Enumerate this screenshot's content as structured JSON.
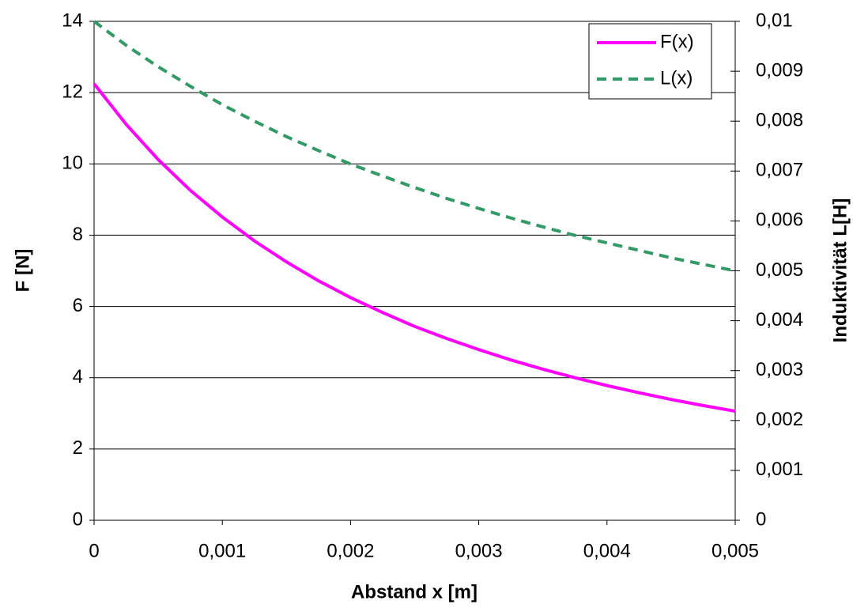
{
  "chart_data": {
    "type": "line",
    "x_label": "Abstand x [m]",
    "y_label": "F [N]",
    "y2_label": "Induktivität L[H]",
    "x": [
      0,
      0.00025,
      0.0005,
      0.00075,
      0.001,
      0.00125,
      0.0015,
      0.00175,
      0.002,
      0.00225,
      0.0025,
      0.00275,
      0.003,
      0.00325,
      0.0035,
      0.00375,
      0.004,
      0.00425,
      0.0045,
      0.00475,
      0.005
    ],
    "series": [
      {
        "name": "F(x)",
        "color": "#ff00ff",
        "dash": false,
        "axis": "y",
        "values": [
          12.25,
          11.11,
          10.12,
          9.26,
          8.51,
          7.84,
          7.25,
          6.72,
          6.25,
          5.83,
          5.44,
          5.1,
          4.79,
          4.5,
          4.24,
          4.0,
          3.78,
          3.58,
          3.39,
          3.22,
          3.06
        ]
      },
      {
        "name": "L(x)",
        "color": "#339966",
        "dash": true,
        "axis": "y2",
        "values": [
          0.01,
          0.00952,
          0.00909,
          0.0087,
          0.00833,
          0.008,
          0.00769,
          0.00741,
          0.00714,
          0.0069,
          0.00667,
          0.00645,
          0.00625,
          0.00606,
          0.00588,
          0.00571,
          0.00556,
          0.00541,
          0.00526,
          0.00513,
          0.005
        ]
      }
    ],
    "xlim": [
      0,
      0.005
    ],
    "xticks": [
      0,
      {
        "value": 0.001,
        "label": "0,001"
      },
      {
        "value": 0.002,
        "label": "0,002"
      },
      {
        "value": 0.003,
        "label": "0,003"
      },
      {
        "value": 0.004,
        "label": "0,004"
      },
      {
        "value": 0.005,
        "label": "0,005"
      }
    ],
    "ylim": [
      0,
      14
    ],
    "yticks": [
      0,
      2,
      4,
      6,
      8,
      10,
      12,
      14
    ],
    "y2lim": [
      0,
      0.01
    ],
    "y2ticks": [
      0,
      {
        "value": 0.001,
        "label": "0,001"
      },
      {
        "value": 0.002,
        "label": "0,002"
      },
      {
        "value": 0.003,
        "label": "0,003"
      },
      {
        "value": 0.004,
        "label": "0,004"
      },
      {
        "value": 0.005,
        "label": "0,005"
      },
      {
        "value": 0.006,
        "label": "0,006"
      },
      {
        "value": 0.007,
        "label": "0,007"
      },
      {
        "value": 0.008,
        "label": "0,008"
      },
      {
        "value": 0.009,
        "label": "0,009"
      },
      {
        "value": 0.01,
        "label": "0,01"
      }
    ],
    "grid": true,
    "legend": "top-right"
  }
}
